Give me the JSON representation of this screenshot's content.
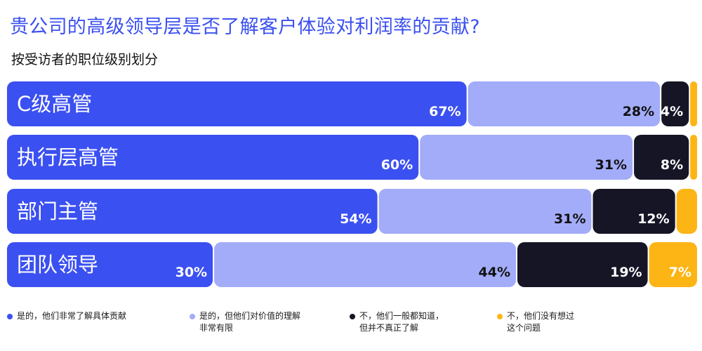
{
  "header": {
    "title": "贵公司的高级领导层是否了解客户体验对利润率的贡献?",
    "subtitle": "按受访者的职位级别划分"
  },
  "colors": {
    "accent": "#3b50f0",
    "series": [
      "#3b50f0",
      "#a3acf8",
      "#151526",
      "#fdb515"
    ]
  },
  "chart_data": {
    "type": "bar",
    "orientation": "horizontal",
    "stacked": true,
    "categories": [
      "C级高管",
      "执行层高管",
      "部门主管",
      "团队领导"
    ],
    "series": [
      {
        "name": "是的，他们非常了解具体贡献",
        "values": [
          67,
          60,
          54,
          30
        ]
      },
      {
        "name": "是的，但他们对价值的理解\n非常有限",
        "values": [
          28,
          31,
          31,
          44
        ]
      },
      {
        "name": "不，他们一般都知道，\n但并不真正了解",
        "values": [
          4,
          8,
          12,
          19
        ]
      },
      {
        "name": "不，他们没有想过\n这个问题",
        "values": [
          1,
          1,
          3,
          7
        ]
      }
    ],
    "data_labels": [
      [
        "67%",
        "28%",
        "4%",
        ""
      ],
      [
        "60%",
        "31%",
        "8%",
        ""
      ],
      [
        "54%",
        "31%",
        "12%",
        ""
      ],
      [
        "30%",
        "44%",
        "19%",
        "7%"
      ]
    ],
    "legend_position": "bottom",
    "grid": false
  }
}
